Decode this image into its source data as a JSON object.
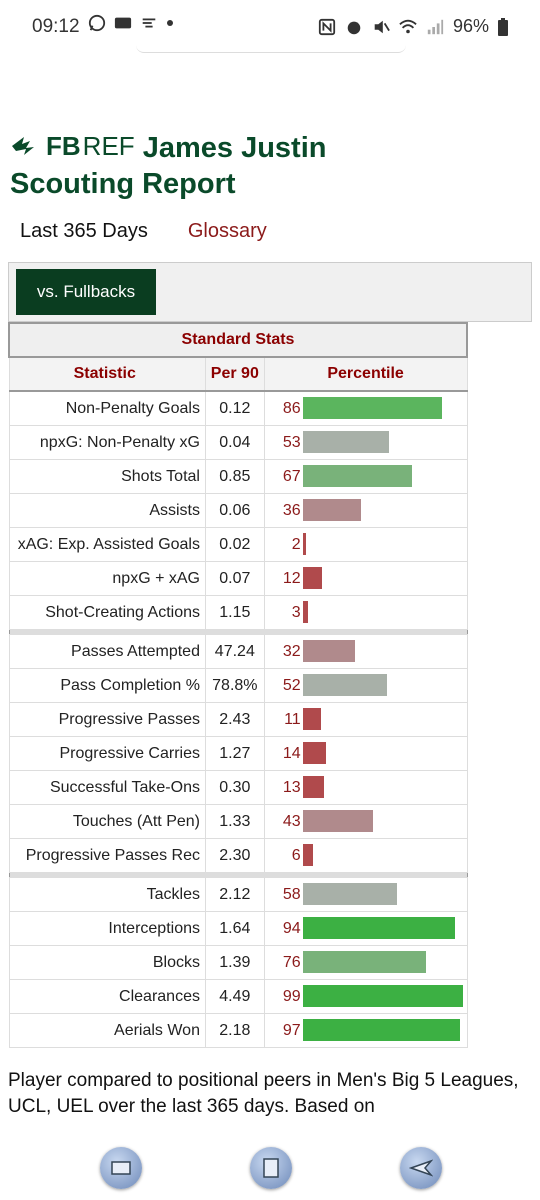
{
  "status_bar": {
    "time": "09:12",
    "battery": "96%",
    "left_icons": [
      "whatsapp-icon",
      "voicemail-icon",
      "cast-icon",
      "dot-icon"
    ],
    "right_icons": [
      "nfc-icon",
      "alarm-icon",
      "mute-icon",
      "wifi-icon",
      "signal-icon",
      "battery-icon"
    ]
  },
  "header": {
    "logo_fb": "FB",
    "logo_ref": "REF",
    "title_line1": "James Justin",
    "title_line2": "Scouting Report"
  },
  "subnav": {
    "period": "Last 365 Days",
    "glossary": "Glossary"
  },
  "filter": {
    "button_label": "vs. Fullbacks"
  },
  "table": {
    "caption": "Standard Stats",
    "headers": {
      "statistic": "Statistic",
      "per90": "Per 90",
      "percentile": "Percentile"
    },
    "groups": [
      [
        {
          "stat": "Non-Penalty Goals",
          "per90": "0.12",
          "pct": 86
        },
        {
          "stat": "npxG: Non-Penalty xG",
          "per90": "0.04",
          "pct": 53
        },
        {
          "stat": "Shots Total",
          "per90": "0.85",
          "pct": 67
        },
        {
          "stat": "Assists",
          "per90": "0.06",
          "pct": 36
        },
        {
          "stat": "xAG: Exp. Assisted Goals",
          "per90": "0.02",
          "pct": 2
        },
        {
          "stat": "npxG + xAG",
          "per90": "0.07",
          "pct": 12
        },
        {
          "stat": "Shot-Creating Actions",
          "per90": "1.15",
          "pct": 3
        }
      ],
      [
        {
          "stat": "Passes Attempted",
          "per90": "47.24",
          "pct": 32
        },
        {
          "stat": "Pass Completion %",
          "per90": "78.8%",
          "pct": 52
        },
        {
          "stat": "Progressive Passes",
          "per90": "2.43",
          "pct": 11
        },
        {
          "stat": "Progressive Carries",
          "per90": "1.27",
          "pct": 14
        },
        {
          "stat": "Successful Take-Ons",
          "per90": "0.30",
          "pct": 13
        },
        {
          "stat": "Touches (Att Pen)",
          "per90": "1.33",
          "pct": 43
        },
        {
          "stat": "Progressive Passes Rec",
          "per90": "2.30",
          "pct": 6
        }
      ],
      [
        {
          "stat": "Tackles",
          "per90": "2.12",
          "pct": 58
        },
        {
          "stat": "Interceptions",
          "per90": "1.64",
          "pct": 94
        },
        {
          "stat": "Blocks",
          "per90": "1.39",
          "pct": 76
        },
        {
          "stat": "Clearances",
          "per90": "4.49",
          "pct": 99
        },
        {
          "stat": "Aerials Won",
          "per90": "2.18",
          "pct": 97
        }
      ]
    ]
  },
  "footer": {
    "text": "Player compared to positional peers in Men's Big 5 Leagues, UCL, UEL over the last 365 days. Based on"
  },
  "navbar": {
    "buttons": [
      "recent-apps-icon",
      "home-icon",
      "back-icon"
    ]
  }
}
